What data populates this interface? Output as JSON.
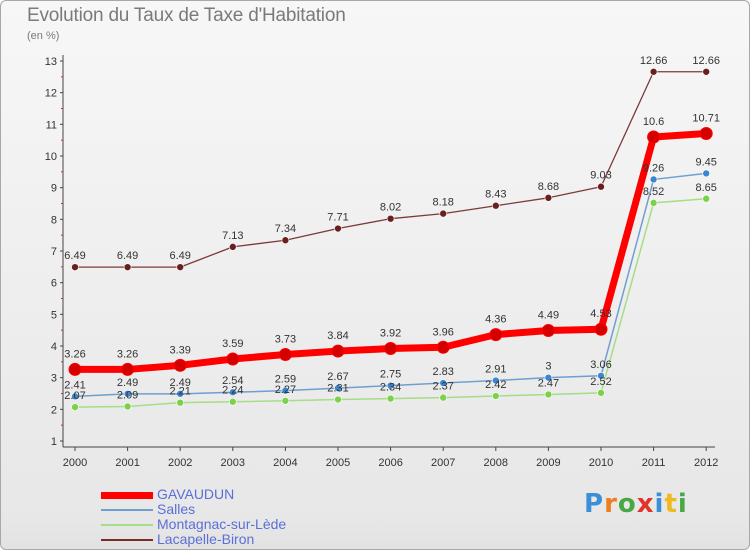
{
  "title": "Evolution du Taux de Taxe d'Habitation",
  "subtitle": "(en %)",
  "logo": {
    "text": "Proxiti",
    "colors": [
      "#3a8fd6",
      "#f07d1d",
      "#49a843",
      "#e0342b",
      "#3a8fd6",
      "#f0b91d",
      "#49a843"
    ]
  },
  "chart_data": {
    "type": "line",
    "title": "Evolution du Taux de Taxe d'Habitation",
    "ylabel": "(en %)",
    "x": [
      "2000",
      "2001",
      "2002",
      "2003",
      "2004",
      "2005",
      "2006",
      "2007",
      "2008",
      "2009",
      "2010",
      "2011",
      "2012"
    ],
    "ylim": [
      1,
      13
    ],
    "yticks": [
      "1",
      "2",
      "3",
      "4",
      "5",
      "6",
      "7",
      "8",
      "9",
      "10",
      "11",
      "12",
      "13"
    ],
    "grid": false,
    "legend_position": "bottom-left",
    "series": [
      {
        "name": "GAVAUDUN",
        "color": "#ff0000",
        "values": [
          3.26,
          3.26,
          3.39,
          3.59,
          3.73,
          3.84,
          3.92,
          3.96,
          4.36,
          4.49,
          4.53,
          10.6,
          10.71
        ],
        "labels": [
          "3.26",
          "3.26",
          "3.39",
          "3.59",
          "3.73",
          "3.84",
          "3.92",
          "3.96",
          "4.36",
          "4.49",
          "4.53",
          "10.6",
          "10.71"
        ]
      },
      {
        "name": "Salles",
        "color": "#6f9fd0",
        "values": [
          2.41,
          2.49,
          2.49,
          2.54,
          2.59,
          2.67,
          2.75,
          2.83,
          2.91,
          3.0,
          3.06,
          9.26,
          9.45
        ],
        "labels": [
          "2.41",
          "2.49",
          "2.49",
          "2.54",
          "2.59",
          "2.67",
          "2.75",
          "2.83",
          "2.91",
          "3",
          "3.06",
          "9.26",
          "9.45"
        ]
      },
      {
        "name": "Montagnac-sur-Lède",
        "color": "#9ad67a",
        "values": [
          2.07,
          2.09,
          2.21,
          2.24,
          2.27,
          2.31,
          2.34,
          2.37,
          2.42,
          2.47,
          2.52,
          8.52,
          8.65
        ],
        "labels": [
          "2.07",
          "2.09",
          "2.21",
          "2.24",
          "2.27",
          "2.31",
          "2.34",
          "2.37",
          "2.42",
          "2.47",
          "2.52",
          "8.52",
          "8.65"
        ]
      },
      {
        "name": "Lacapelle-Biron",
        "color": "#7b2a2a",
        "values": [
          6.49,
          6.49,
          6.49,
          7.13,
          7.34,
          7.71,
          8.02,
          8.18,
          8.43,
          8.68,
          9.03,
          12.66,
          12.66
        ],
        "labels": [
          "6.49",
          "6.49",
          "6.49",
          "7.13",
          "7.34",
          "7.71",
          "8.02",
          "8.18",
          "8.43",
          "8.68",
          "9.03",
          "12.66",
          "12.66"
        ]
      }
    ]
  }
}
